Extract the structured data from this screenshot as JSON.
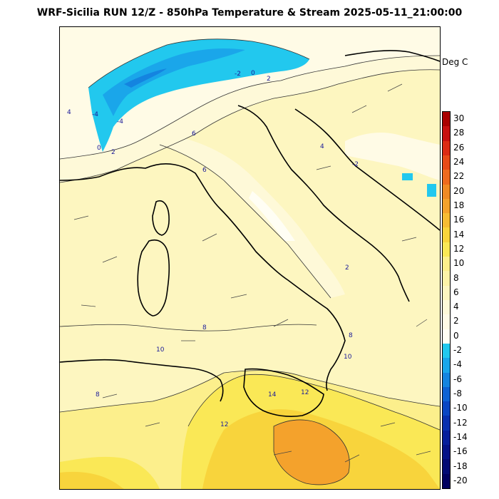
{
  "title": "WRF-Sicilia RUN 12/Z - 850hPa Temperature & Stream 2025-05-11_21:00:00",
  "units": "Deg C",
  "colorbar": {
    "ticks": [
      "30",
      "28",
      "26",
      "24",
      "22",
      "20",
      "18",
      "16",
      "14",
      "12",
      "10",
      "8",
      "6",
      "4",
      "2",
      "0",
      "-2",
      "-4",
      "-6",
      "-8",
      "-10",
      "-12",
      "-14",
      "-16",
      "-18",
      "-20"
    ],
    "colors": [
      "#aa0000",
      "#c81010",
      "#dc2a14",
      "#e84a18",
      "#ee6a1e",
      "#f08a24",
      "#f4a22c",
      "#f6bc34",
      "#f8d43c",
      "#fae856",
      "#fcef8c",
      "#fdf3a8",
      "#fdf6c0",
      "#fef9d8",
      "#fffbe6",
      "#fffef4",
      "#22c8ee",
      "#1aa6ea",
      "#1484e0",
      "#0e62d4",
      "#0a46c4",
      "#0830b0",
      "#061e9c",
      "#041288",
      "#020a74",
      "#000060"
    ]
  },
  "contour_labels": [
    "-4",
    "-4",
    "-2",
    "-2",
    "0",
    "0",
    "2",
    "2",
    "4",
    "4",
    "6",
    "6",
    "8",
    "10",
    "10",
    "12",
    "12",
    "14",
    "-2",
    "2",
    "4",
    "6",
    "8"
  ]
}
